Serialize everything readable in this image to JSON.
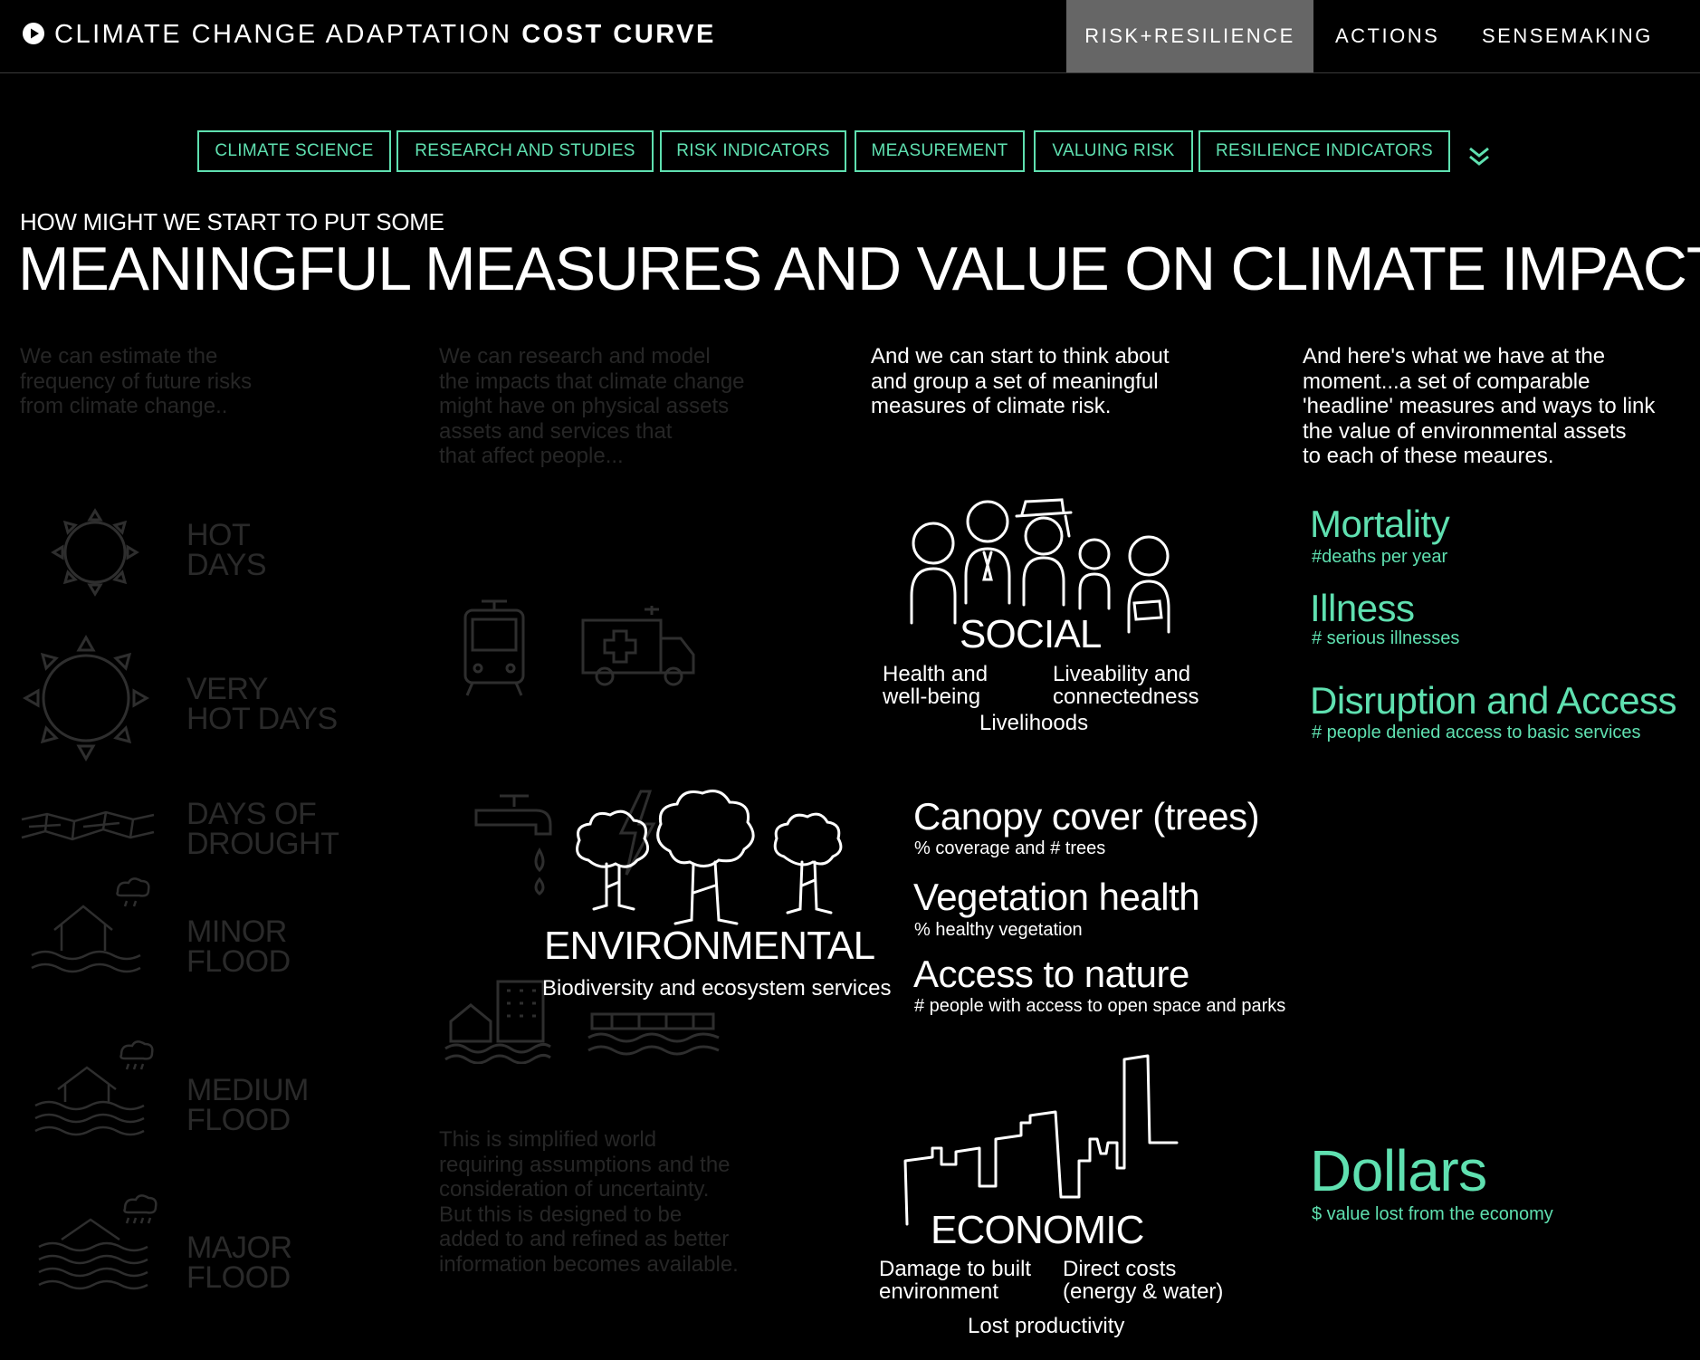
{
  "header": {
    "title_light": "CLIMATE CHANGE ADAPTATION",
    "title_bold": "COST CURVE",
    "nav": [
      "RISK+RESILIENCE",
      "ACTIONS",
      "SENSEMAKING"
    ]
  },
  "filters": [
    "CLIMATE SCIENCE",
    "RESEARCH AND STUDIES",
    "RISK INDICATORS",
    "MEASUREMENT",
    "VALUING RISK",
    "RESILIENCE INDICATORS"
  ],
  "kicker": "HOW MIGHT WE START TO PUT SOME",
  "headline": "MEANINGFUL MEASURES AND VALUE ON CLIMATE IMPACTS",
  "columns": {
    "col1": "We can estimate the\nfrequency of future risks\nfrom climate change..",
    "col2": "We can research and model\nthe impacts that climate change\nmight have on physical assets\nassets and services that\nthat affect people...",
    "col3": "And we can start to think about\nand group a set of meaningful\nmeasures of climate risk.",
    "col4": "And here's what we have at the\nmoment...a set of comparable\n'headline' measures and ways to link\nthe value of environmental assets\nto each of these meaures."
  },
  "frequencies": {
    "hot": "HOT\nDAYS",
    "very_hot": "VERY\nHOT DAYS",
    "drought": "DAYS OF\nDROUGHT",
    "minor_flood": "MINOR\nFLOOD",
    "medium_flood": "MEDIUM\nFLOOD",
    "major_flood": "MAJOR\nFLOOD"
  },
  "disclaimer": "This is simplified world\nrequiring assumptions and the\nconsideration of uncertainty.\nBut this is designed to be\nadded to and refined as better\ninformation becomes available.",
  "social": {
    "title": "SOCIAL",
    "health": "Health and\nwell-being",
    "liveability": "Liveability and\nconnectedness",
    "livelihoods": "Livelihoods"
  },
  "environmental": {
    "title": "ENVIRONMENTAL",
    "subtitle": "Biodiversity and ecosystem services"
  },
  "economic": {
    "title": "ECONOMIC",
    "damage": "Damage to built\nenvironment",
    "direct": "Direct costs\n(energy & water)",
    "productivity": "Lost productivity"
  },
  "measures": {
    "mortality": {
      "label": "Mortality",
      "sub": "#deaths per year"
    },
    "illness": {
      "label": "Illness",
      "sub": "# serious illnesses"
    },
    "disruption": {
      "label": "Disruption and Access",
      "sub": "# people denied access to basic services"
    },
    "canopy": {
      "label": "Canopy cover (trees)",
      "sub": "% coverage and # trees"
    },
    "vegetation": {
      "label": "Vegetation health",
      "sub": "% healthy vegetation"
    },
    "nature": {
      "label": "Access to nature",
      "sub": "# people with access to open space and parks"
    },
    "dollars": {
      "label": "Dollars",
      "sub": "$ value lost from the economy"
    }
  },
  "colors": {
    "accent": "#5fe0b0",
    "active_tab": "#666666",
    "background": "#000000"
  }
}
